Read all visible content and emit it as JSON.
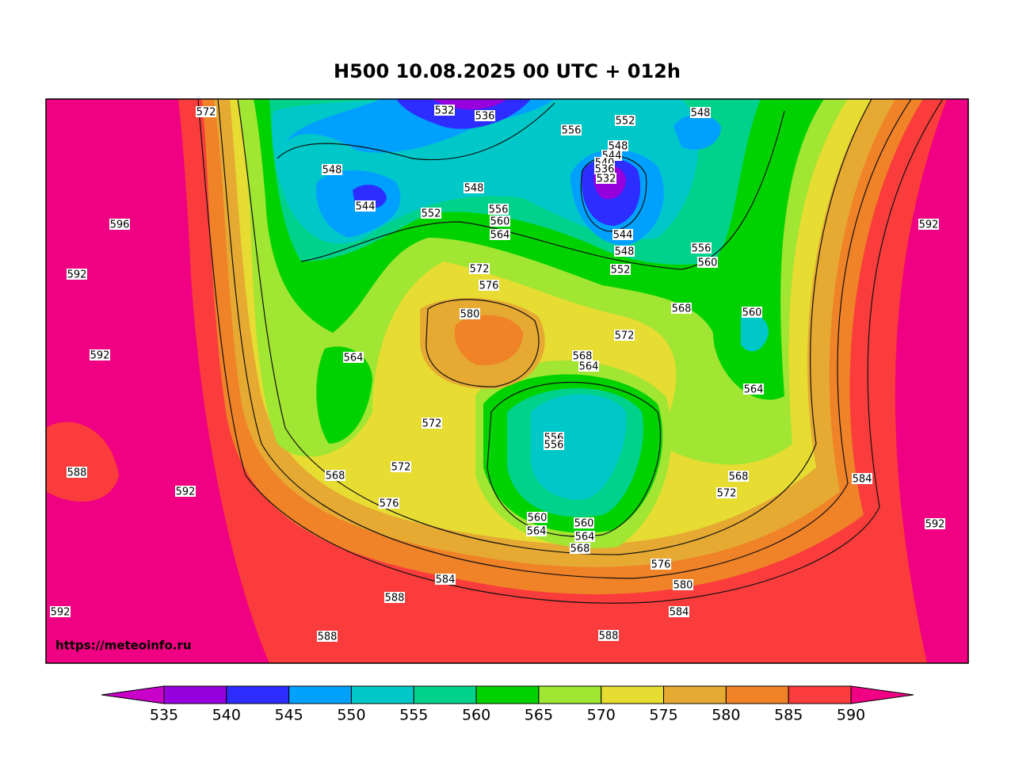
{
  "title": "H500  10.08.2025 00 UTC + 012h",
  "watermark": "https://meteoinfo.ru",
  "colorbar": {
    "levels": [
      535,
      540,
      545,
      550,
      555,
      560,
      565,
      570,
      575,
      580,
      585,
      590
    ],
    "colors": [
      "#c800c8",
      "#9600dc",
      "#2d2dff",
      "#00a0ff",
      "#00c8c8",
      "#00d28c",
      "#00d200",
      "#a0e632",
      "#e6dc32",
      "#e6aa32",
      "#f08228",
      "#fa3c3c",
      "#f00082"
    ]
  },
  "contour_labels": [
    572,
    532,
    536,
    556,
    552,
    548,
    548,
    548,
    544,
    540,
    536,
    532,
    548,
    544,
    552,
    556,
    560,
    564,
    596,
    592,
    544,
    548,
    556,
    560,
    552,
    592,
    572,
    576,
    580,
    568,
    560,
    572,
    592,
    564,
    568,
    564,
    564,
    572,
    556,
    556,
    588,
    568,
    572,
    568,
    584,
    592,
    572,
    576,
    560,
    564,
    560,
    564,
    568,
    592,
    576,
    584,
    588,
    580,
    584,
    592,
    588,
    588
  ]
}
